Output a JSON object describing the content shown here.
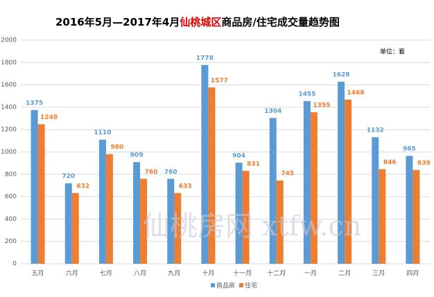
{
  "chart_data": {
    "type": "bar",
    "title_parts": [
      "2016年5月—2017年4月",
      "仙桃城区",
      "商品房/住宅成交量趋势图"
    ],
    "title_highlight_color": "#e00000",
    "unit_label": "单位：套",
    "watermark": "仙桃房网 xtfw.cn",
    "categories": [
      "五月",
      "六月",
      "七月",
      "八月",
      "九月",
      "十月",
      "十一月",
      "十二月",
      "一月",
      "二月",
      "三月",
      "四月"
    ],
    "series": [
      {
        "name": "商品房",
        "color": "#5b9bd5",
        "values": [
          1375,
          720,
          1110,
          909,
          760,
          1778,
          904,
          1304,
          1455,
          1628,
          1132,
          965
        ]
      },
      {
        "name": "住宅",
        "color": "#ed7d31",
        "values": [
          1248,
          632,
          980,
          760,
          633,
          1577,
          831,
          745,
          1355,
          1468,
          846,
          839
        ]
      }
    ],
    "ylim": [
      0,
      2000
    ],
    "yticks": [
      0,
      200,
      400,
      600,
      800,
      1000,
      1200,
      1400,
      1600,
      1800,
      2000
    ],
    "grid": true,
    "legend": "bottom"
  }
}
